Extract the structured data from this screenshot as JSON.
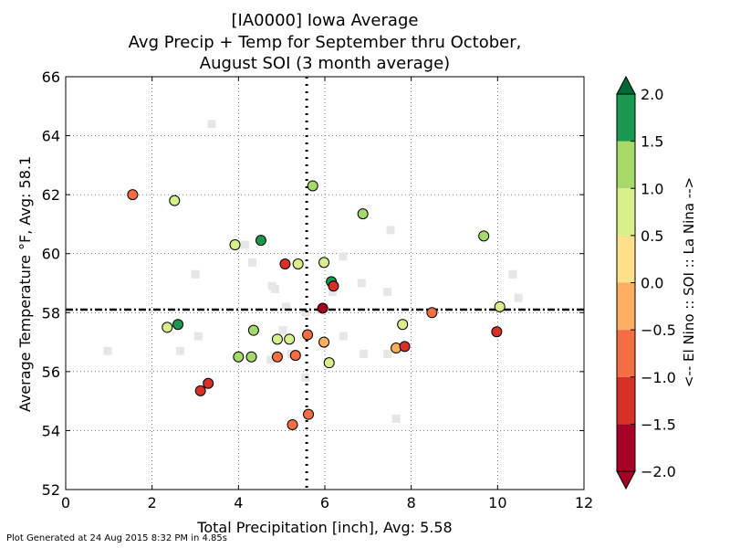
{
  "chart_data": {
    "type": "scatter",
    "title_lines": [
      "[IA0000] Iowa Average",
      "Avg Precip + Temp for September thru October,",
      "August SOI (3 month average)"
    ],
    "xlabel": "Total Precipitation [inch], Avg: 5.58",
    "ylabel": "Average Temperature °F, Avg: 58.1",
    "xlim": [
      0,
      12
    ],
    "ylim": [
      52,
      66
    ],
    "xticks": [
      "0",
      "2",
      "4",
      "6",
      "8",
      "10",
      "12"
    ],
    "yticks": [
      "52",
      "54",
      "56",
      "58",
      "60",
      "62",
      "64",
      "66"
    ],
    "grid": true,
    "avg_precip": 5.58,
    "avg_temp": 58.1,
    "footer": "Plot Generated at 24 Aug 2015 8:32 PM in 4.85s",
    "colorbar": {
      "label": "<-- El Nino :: SOI :: La Nina -->",
      "ticks": [
        "2.0",
        "1.5",
        "1.0",
        "0.5",
        "0.0",
        "−0.5",
        "−1.0",
        "−1.5",
        "−2.0"
      ],
      "bounds": [
        -2.0,
        -1.5,
        -1.0,
        -0.5,
        0.0,
        0.5,
        1.0,
        1.5,
        2.0
      ],
      "colors": [
        "#a50026",
        "#d73027",
        "#f46d43",
        "#fdae61",
        "#fee08b",
        "#d9ef8b",
        "#a6d96a",
        "#1a9850",
        "#006837"
      ],
      "extend_min_color": "#a50026",
      "extend_max_color": "#006837"
    },
    "background_points": [
      {
        "x": 0.97,
        "y": 56.7
      },
      {
        "x": 2.65,
        "y": 56.7
      },
      {
        "x": 3.0,
        "y": 59.3
      },
      {
        "x": 3.07,
        "y": 57.2
      },
      {
        "x": 3.38,
        "y": 64.4
      },
      {
        "x": 4.15,
        "y": 60.3
      },
      {
        "x": 4.32,
        "y": 59.7
      },
      {
        "x": 4.75,
        "y": 56.4
      },
      {
        "x": 4.78,
        "y": 58.9
      },
      {
        "x": 4.85,
        "y": 58.8
      },
      {
        "x": 5.03,
        "y": 57.4
      },
      {
        "x": 5.1,
        "y": 58.2
      },
      {
        "x": 5.22,
        "y": 56.6
      },
      {
        "x": 5.55,
        "y": 55.8
      },
      {
        "x": 5.55,
        "y": 58.0
      },
      {
        "x": 6.18,
        "y": 58.7
      },
      {
        "x": 6.42,
        "y": 59.9
      },
      {
        "x": 6.43,
        "y": 57.2
      },
      {
        "x": 6.85,
        "y": 59.0
      },
      {
        "x": 6.9,
        "y": 56.6
      },
      {
        "x": 7.45,
        "y": 56.6
      },
      {
        "x": 7.45,
        "y": 58.7
      },
      {
        "x": 7.52,
        "y": 60.8
      },
      {
        "x": 7.65,
        "y": 54.4
      },
      {
        "x": 10.35,
        "y": 59.3
      },
      {
        "x": 10.48,
        "y": 58.5
      }
    ],
    "points": [
      {
        "x": 1.55,
        "y": 62.0,
        "soi": -0.75
      },
      {
        "x": 2.52,
        "y": 61.8,
        "soi": 0.75
      },
      {
        "x": 2.35,
        "y": 57.5,
        "soi": 0.75
      },
      {
        "x": 2.6,
        "y": 57.6,
        "soi": 1.75
      },
      {
        "x": 3.12,
        "y": 55.35,
        "soi": -1.25
      },
      {
        "x": 3.3,
        "y": 55.6,
        "soi": -1.25
      },
      {
        "x": 3.92,
        "y": 60.3,
        "soi": 0.75
      },
      {
        "x": 4.0,
        "y": 56.5,
        "soi": 1.25
      },
      {
        "x": 4.3,
        "y": 56.5,
        "soi": 1.25
      },
      {
        "x": 4.35,
        "y": 57.4,
        "soi": 1.25
      },
      {
        "x": 4.52,
        "y": 60.45,
        "soi": 1.75
      },
      {
        "x": 4.9,
        "y": 57.1,
        "soi": 0.75
      },
      {
        "x": 4.9,
        "y": 56.5,
        "soi": -0.75
      },
      {
        "x": 5.08,
        "y": 59.65,
        "soi": -1.25
      },
      {
        "x": 5.18,
        "y": 57.1,
        "soi": 0.75
      },
      {
        "x": 5.25,
        "y": 54.2,
        "soi": -0.75
      },
      {
        "x": 5.32,
        "y": 56.55,
        "soi": -0.75
      },
      {
        "x": 5.38,
        "y": 59.65,
        "soi": 0.75
      },
      {
        "x": 5.62,
        "y": 54.55,
        "soi": -0.75
      },
      {
        "x": 5.6,
        "y": 57.25,
        "soi": -0.75
      },
      {
        "x": 5.72,
        "y": 62.3,
        "soi": 1.25
      },
      {
        "x": 5.95,
        "y": 58.15,
        "soi": -1.75
      },
      {
        "x": 5.98,
        "y": 59.7,
        "soi": 0.75
      },
      {
        "x": 5.98,
        "y": 57.0,
        "soi": -0.25
      },
      {
        "x": 6.1,
        "y": 56.3,
        "soi": 0.75
      },
      {
        "x": 6.15,
        "y": 59.05,
        "soi": 1.75
      },
      {
        "x": 6.2,
        "y": 58.9,
        "soi": -1.25
      },
      {
        "x": 6.88,
        "y": 61.35,
        "soi": 1.25
      },
      {
        "x": 7.65,
        "y": 56.8,
        "soi": -0.25
      },
      {
        "x": 7.8,
        "y": 57.6,
        "soi": 0.75
      },
      {
        "x": 7.85,
        "y": 56.85,
        "soi": -1.25
      },
      {
        "x": 8.48,
        "y": 58.0,
        "soi": -0.75
      },
      {
        "x": 9.68,
        "y": 60.6,
        "soi": 1.25
      },
      {
        "x": 9.98,
        "y": 57.35,
        "soi": -1.25
      },
      {
        "x": 10.05,
        "y": 58.2,
        "soi": 0.75
      }
    ]
  }
}
